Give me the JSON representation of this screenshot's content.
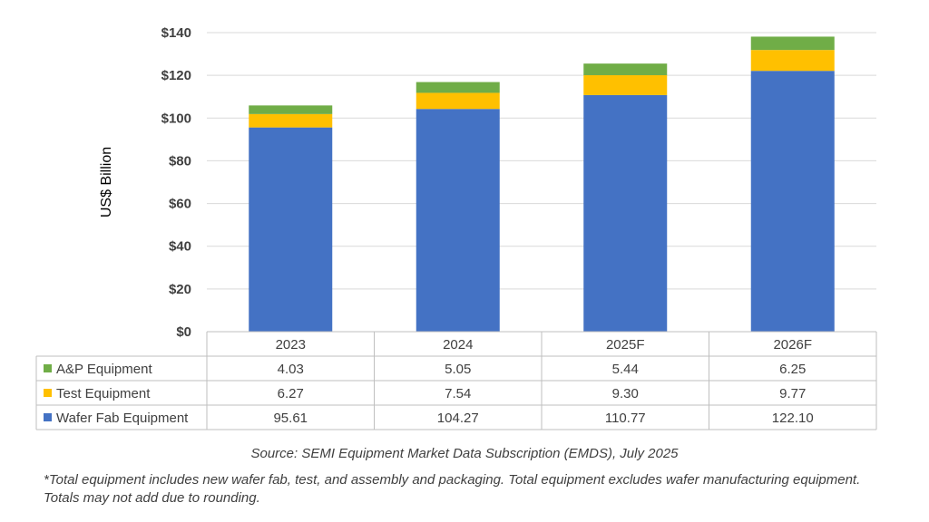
{
  "chart_data": {
    "type": "bar",
    "stacked": true,
    "categories": [
      "2023",
      "2024",
      "2025F",
      "2026F"
    ],
    "series": [
      {
        "name": "Wafer Fab Equipment",
        "values": [
          95.61,
          104.27,
          110.77,
          122.1
        ],
        "color": "#4472C4"
      },
      {
        "name": "Test Equipment",
        "values": [
          6.27,
          7.54,
          9.3,
          9.77
        ],
        "color": "#FFC000"
      },
      {
        "name": "A&P Equipment",
        "values": [
          4.03,
          5.05,
          5.44,
          6.25
        ],
        "color": "#70AD47"
      }
    ],
    "table_rows": [
      {
        "name": "A&P Equipment",
        "color": "#70AD47",
        "cells": [
          "4.03",
          "5.05",
          "5.44",
          "6.25"
        ]
      },
      {
        "name": "Test Equipment",
        "color": "#FFC000",
        "cells": [
          "6.27",
          "7.54",
          "9.30",
          "9.77"
        ]
      },
      {
        "name": "Wafer Fab Equipment",
        "color": "#4472C4",
        "cells": [
          "95.61",
          "104.27",
          "110.77",
          "122.10"
        ]
      }
    ],
    "ylabel": "US$ Billion",
    "ylim": [
      0,
      140
    ],
    "yticks": [
      0,
      20,
      40,
      60,
      80,
      100,
      120,
      140
    ],
    "ytick_labels": [
      "$0",
      "$20",
      "$40",
      "$60",
      "$80",
      "$100",
      "$120",
      "$140"
    ],
    "grid": true,
    "legend": "data-table"
  },
  "source": "Source: SEMI Equipment Market Data Subscription (EMDS), July 2025",
  "footnote": "*Total equipment includes new wafer fab, test, and assembly and packaging. Total equipment excludes wafer manufacturing equipment. Totals may not add due to rounding."
}
